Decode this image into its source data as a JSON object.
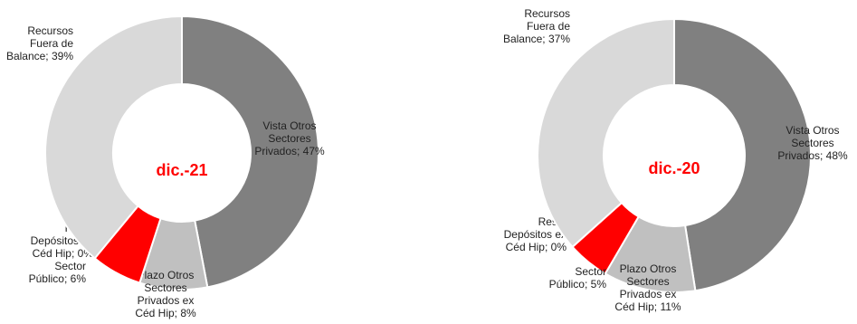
{
  "colors": {
    "vista": "#808080",
    "plazo": "#c0c0c0",
    "sector_publico": "#ff0000",
    "resto": "#ffffff",
    "fuera_balance": "#d9d9d9",
    "center_label": "#ff0000"
  },
  "chart_data": [
    {
      "type": "pie",
      "variant": "donut",
      "center_label": "dic.-21",
      "slices": [
        {
          "label": "Vista Otros Sectores Privados",
          "value": 47,
          "display": [
            "Vista Otros",
            "Sectores",
            "Privados; 47%"
          ],
          "color": "#808080"
        },
        {
          "label": "Plazo Otros Sectores Privados ex Céd Hip",
          "value": 8,
          "display": [
            "Plazo Otros",
            "Sectores",
            "Privados ex",
            "Céd Hip; 8%"
          ],
          "color": "#c0c0c0"
        },
        {
          "label": "Sector Público",
          "value": 6,
          "display": [
            "Sector",
            "Público; 6%"
          ],
          "color": "#ff0000"
        },
        {
          "label": "Resto Depósitos ex Céd Hip",
          "value": 0,
          "display": [
            "Resto",
            "Depósitos ex",
            "Céd Hip; 0%"
          ],
          "color": "#ffffff"
        },
        {
          "label": "Recursos Fuera de Balance",
          "value": 39,
          "display": [
            "Recursos",
            "Fuera de",
            "Balance; 39%"
          ],
          "color": "#d9d9d9"
        }
      ]
    },
    {
      "type": "pie",
      "variant": "donut",
      "center_label": "dic.-20",
      "slices": [
        {
          "label": "Vista Otros Sectores Privados",
          "value": 48,
          "display": [
            "Vista Otros",
            "Sectores",
            "Privados; 48%"
          ],
          "color": "#808080"
        },
        {
          "label": "Plazo Otros Sectores Privados ex Céd Hip",
          "value": 11,
          "display": [
            "Plazo Otros",
            "Sectores",
            "Privados ex",
            "Céd Hip; 11%"
          ],
          "color": "#c0c0c0"
        },
        {
          "label": "Sector Público",
          "value": 5,
          "display": [
            "Sector",
            "Público; 5%"
          ],
          "color": "#ff0000"
        },
        {
          "label": "Resto Depósitos ex Céd Hip",
          "value": 0,
          "display": [
            "Resto",
            "Depósitos ex",
            "Céd Hip; 0%"
          ],
          "color": "#ffffff"
        },
        {
          "label": "Recursos Fuera de Balance",
          "value": 37,
          "display": [
            "Recursos",
            "Fuera de",
            "Balance; 37%"
          ],
          "color": "#d9d9d9"
        }
      ]
    }
  ]
}
